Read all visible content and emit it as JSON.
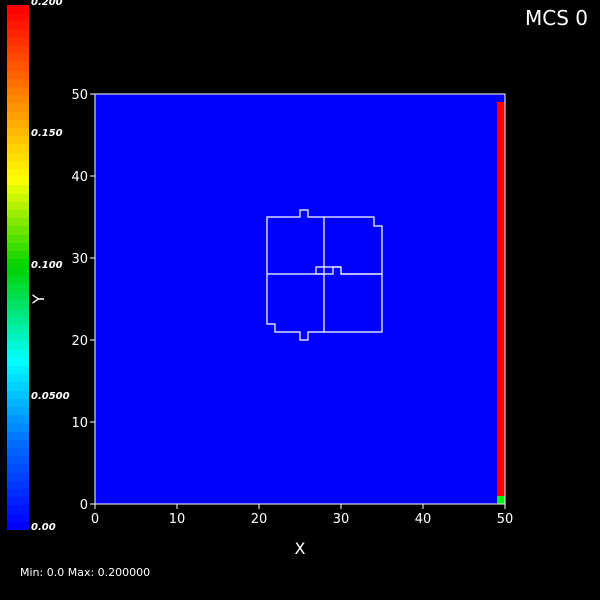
{
  "overlay": {
    "mcs_label": "MCS 0",
    "minmax_label": "Min: 0.0 Max: 0.200000"
  },
  "colorbar": {
    "labels": [
      "0.200",
      "0.150",
      "0.100",
      "0.0500",
      "0.00"
    ],
    "min": 0.0,
    "max": 0.2
  },
  "plot": {
    "x_title": "X",
    "y_title": "Y",
    "x_ticks": [
      "0",
      "10",
      "20",
      "30",
      "40",
      "50"
    ],
    "y_ticks": [
      "0",
      "10",
      "20",
      "30",
      "40",
      "50"
    ],
    "xlim": [
      0,
      50
    ],
    "ylim": [
      0,
      50
    ],
    "field_color": "#0000ff",
    "outline_color": "#ffffff",
    "right_column_value_color": "#ff0000",
    "corner_cell_color": "#00ff00"
  }
}
